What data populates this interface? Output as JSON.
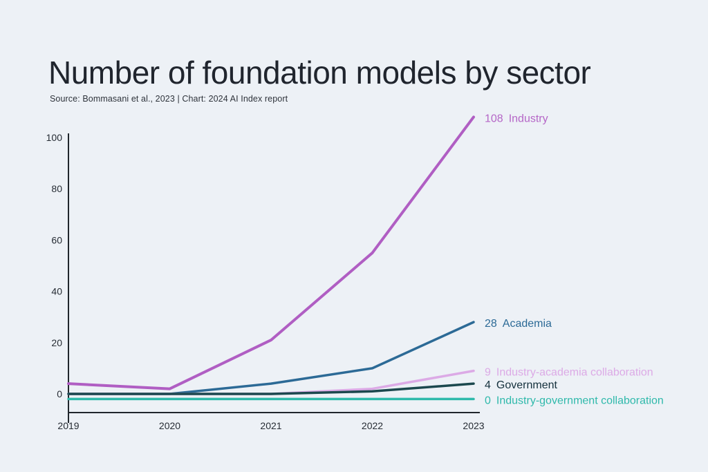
{
  "chart": {
    "title": "Number of foundation models by sector",
    "source": "Source: Bommasani et al., 2023 | Chart: 2024 AI Index report"
  },
  "chart_data": {
    "type": "line",
    "title": "Number of foundation models by sector",
    "source": "Source: Bommasani et al., 2023 | Chart: 2024 AI Index report",
    "x": [
      "2019",
      "2020",
      "2021",
      "2022",
      "2023"
    ],
    "y_ticks": [
      0,
      20,
      40,
      60,
      80,
      100
    ],
    "ylim": [
      0,
      100
    ],
    "grid": false,
    "legend_position": "right-end-labels",
    "background_color": "#edf1f6",
    "axis_color": "#20262c",
    "series": [
      {
        "name": "Academia",
        "values": [
          0,
          0,
          4,
          10,
          28
        ],
        "color": "#2c6a96",
        "label_color": "#2c6a96",
        "end_label": "28",
        "stroke_width": 3.5,
        "display_offset": 0
      },
      {
        "name": "Industry-academia collaboration",
        "values": [
          0,
          0,
          0,
          2,
          9
        ],
        "color": "#dcaae6",
        "label_color": "#dcaae6",
        "end_label": "9",
        "stroke_width": 3.5,
        "display_offset": 0
      },
      {
        "name": "Industry-government collaboration",
        "values": [
          0,
          0,
          0,
          0,
          0
        ],
        "color": "#2fb9ab",
        "label_color": "#2fb9ab",
        "end_label": "0",
        "stroke_width": 3.5,
        "display_offset": -2
      },
      {
        "name": "Government",
        "values": [
          0,
          0,
          0,
          1,
          4
        ],
        "color": "#1c484e",
        "label_color": "#14303c",
        "end_label": "4",
        "stroke_width": 3.5,
        "display_offset": 0
      },
      {
        "name": "Industry",
        "values": [
          4,
          2,
          21,
          55,
          108
        ],
        "color": "#b05ec3",
        "label_color": "#b566c7",
        "end_label": "108",
        "stroke_width": 4,
        "display_offset": 0
      }
    ]
  }
}
